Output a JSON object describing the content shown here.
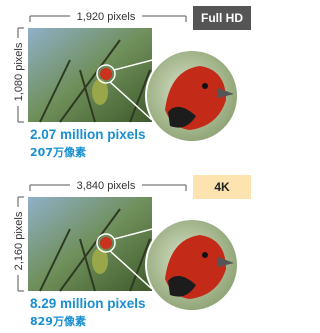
{
  "panels": [
    {
      "width_label": "1,920 pixels",
      "badge": "Full HD",
      "height_label": "1,080 pixels",
      "total": "2.07 million pixels",
      "total_cjk": "207万像素"
    },
    {
      "width_label": "3,840 pixels",
      "badge": "4K",
      "height_label": "2,160 pixels",
      "total": "8.29 million pixels",
      "total_cjk": "829万像素"
    }
  ]
}
